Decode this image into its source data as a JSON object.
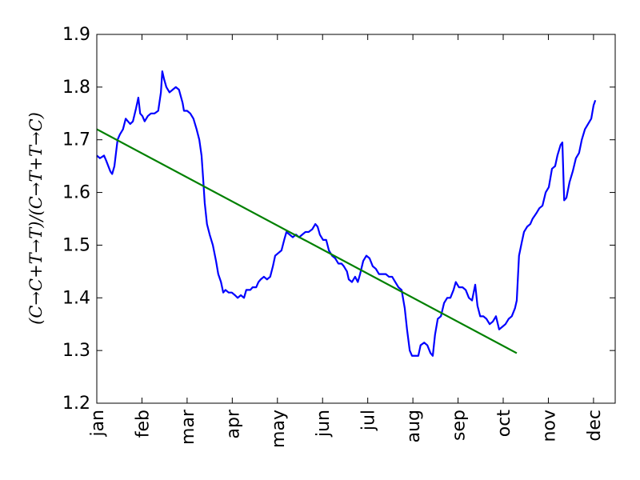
{
  "chart_data": {
    "type": "line",
    "ylabel": "(C→C+T→T)/(C→T+T→C)",
    "xlim": [
      0,
      11.48
    ],
    "ylim": [
      1.2,
      1.9
    ],
    "yticks": [
      1.2,
      1.3,
      1.4,
      1.5,
      1.6,
      1.7,
      1.8,
      1.9
    ],
    "xticks": [
      {
        "value": 0,
        "label": "jan"
      },
      {
        "value": 1,
        "label": "feb"
      },
      {
        "value": 2,
        "label": "mar"
      },
      {
        "value": 3,
        "label": "apr"
      },
      {
        "value": 4,
        "label": "may"
      },
      {
        "value": 5,
        "label": "jun"
      },
      {
        "value": 6,
        "label": "jul"
      },
      {
        "value": 7,
        "label": "aug"
      },
      {
        "value": 8,
        "label": "sep"
      },
      {
        "value": 9,
        "label": "oct"
      },
      {
        "value": 10,
        "label": "nov"
      },
      {
        "value": 11,
        "label": "dec"
      }
    ],
    "series": [
      {
        "color": "#0000ff",
        "x": [
          0,
          0.07,
          0.16,
          0.21,
          0.3,
          0.34,
          0.39,
          0.46,
          0.51,
          0.58,
          0.64,
          0.69,
          0.74,
          0.8,
          0.87,
          0.92,
          0.96,
          1.01,
          1.06,
          1.13,
          1.2,
          1.28,
          1.36,
          1.42,
          1.45,
          1.49,
          1.54,
          1.61,
          1.68,
          1.75,
          1.82,
          1.9,
          1.93,
          2.0,
          2.07,
          2.14,
          2.21,
          2.27,
          2.32,
          2.36,
          2.39,
          2.44,
          2.5,
          2.57,
          2.64,
          2.69,
          2.75,
          2.8,
          2.85,
          2.92,
          2.99,
          3.06,
          3.12,
          3.19,
          3.26,
          3.31,
          3.4,
          3.45,
          3.53,
          3.58,
          3.63,
          3.7,
          3.77,
          3.84,
          3.9,
          3.95,
          4.02,
          4.09,
          4.15,
          4.2,
          4.27,
          4.34,
          4.41,
          4.48,
          4.55,
          4.62,
          4.69,
          4.77,
          4.84,
          4.89,
          4.94,
          5.01,
          5.08,
          5.14,
          5.21,
          5.28,
          5.35,
          5.42,
          5.47,
          5.54,
          5.58,
          5.65,
          5.72,
          5.78,
          5.83,
          5.9,
          5.97,
          6.04,
          6.11,
          6.18,
          6.25,
          6.32,
          6.4,
          6.47,
          6.54,
          6.61,
          6.68,
          6.75,
          6.82,
          6.87,
          6.93,
          6.98,
          7.05,
          7.12,
          7.17,
          7.25,
          7.32,
          7.39,
          7.44,
          7.49,
          7.55,
          7.62,
          7.69,
          7.76,
          7.83,
          7.9,
          7.95,
          8.02,
          8.1,
          8.17,
          8.24,
          8.31,
          8.38,
          8.43,
          8.49,
          8.56,
          8.63,
          8.7,
          8.77,
          8.84,
          8.91,
          8.98,
          9.05,
          9.12,
          9.19,
          9.26,
          9.3,
          9.35,
          9.41,
          9.46,
          9.53,
          9.6,
          9.65,
          9.73,
          9.8,
          9.87,
          9.94,
          10.01,
          10.08,
          10.15,
          10.2,
          10.27,
          10.31,
          10.35,
          10.4,
          10.47,
          10.54,
          10.61,
          10.68,
          10.74,
          10.81,
          10.88,
          10.95,
          11.0,
          11.04
        ],
        "values": [
          1.67,
          1.665,
          1.67,
          1.66,
          1.64,
          1.635,
          1.65,
          1.7,
          1.71,
          1.72,
          1.74,
          1.735,
          1.73,
          1.735,
          1.76,
          1.78,
          1.75,
          1.745,
          1.735,
          1.745,
          1.75,
          1.75,
          1.755,
          1.79,
          1.83,
          1.815,
          1.8,
          1.79,
          1.795,
          1.8,
          1.795,
          1.77,
          1.755,
          1.755,
          1.75,
          1.74,
          1.72,
          1.7,
          1.67,
          1.62,
          1.58,
          1.54,
          1.52,
          1.5,
          1.47,
          1.445,
          1.43,
          1.41,
          1.415,
          1.41,
          1.41,
          1.405,
          1.4,
          1.405,
          1.4,
          1.415,
          1.415,
          1.42,
          1.42,
          1.43,
          1.435,
          1.44,
          1.435,
          1.44,
          1.46,
          1.48,
          1.485,
          1.49,
          1.51,
          1.525,
          1.52,
          1.515,
          1.52,
          1.515,
          1.52,
          1.525,
          1.525,
          1.53,
          1.54,
          1.535,
          1.52,
          1.51,
          1.51,
          1.49,
          1.48,
          1.475,
          1.465,
          1.465,
          1.46,
          1.45,
          1.435,
          1.43,
          1.44,
          1.43,
          1.445,
          1.47,
          1.48,
          1.475,
          1.46,
          1.455,
          1.445,
          1.445,
          1.445,
          1.44,
          1.44,
          1.43,
          1.42,
          1.415,
          1.38,
          1.34,
          1.3,
          1.29,
          1.29,
          1.29,
          1.31,
          1.315,
          1.31,
          1.295,
          1.29,
          1.33,
          1.36,
          1.365,
          1.39,
          1.4,
          1.4,
          1.415,
          1.43,
          1.42,
          1.42,
          1.415,
          1.4,
          1.395,
          1.425,
          1.385,
          1.365,
          1.365,
          1.36,
          1.35,
          1.355,
          1.365,
          1.34,
          1.345,
          1.35,
          1.36,
          1.365,
          1.38,
          1.395,
          1.48,
          1.505,
          1.525,
          1.535,
          1.54,
          1.55,
          1.56,
          1.57,
          1.575,
          1.6,
          1.61,
          1.645,
          1.65,
          1.67,
          1.69,
          1.695,
          1.585,
          1.59,
          1.62,
          1.64,
          1.665,
          1.675,
          1.7,
          1.72,
          1.73,
          1.74,
          1.765,
          1.775
        ]
      },
      {
        "color": "#008000",
        "x": [
          0,
          9.3
        ],
        "values": [
          1.72,
          1.295
        ]
      }
    ]
  }
}
